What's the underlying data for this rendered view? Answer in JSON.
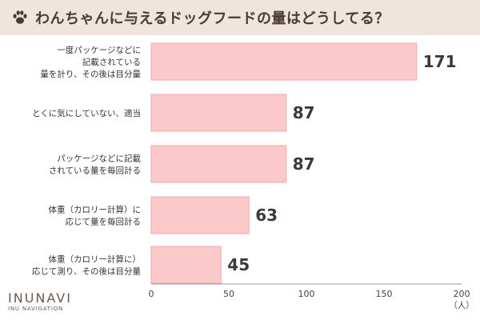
{
  "header": {
    "title": "わんちゃんに与えるドッグフードの量はどうしてる？",
    "icon": "paw-icon"
  },
  "colors": {
    "header_bg": "#efe5dc",
    "bar_fill": "#fbc9c9",
    "bar_stroke": "#f0aaaa",
    "axis": "#999999"
  },
  "logo": {
    "main": "INUNAVI",
    "sub": "INU NAVIGATION"
  },
  "chart_data": {
    "type": "bar",
    "orientation": "horizontal",
    "categories": [
      [
        "一度パッケージなどに",
        "記載されている",
        "量を計り、その後は目分量"
      ],
      [
        "とくに気にしていない、適当"
      ],
      [
        "パッケージなどに記載",
        "されている量を毎回計る"
      ],
      [
        "体重（カロリー計算）に",
        "応じて量を毎回計る"
      ],
      [
        "体重（カロリー計算に）",
        "応じて測り、その後は目分量"
      ]
    ],
    "values": [
      171,
      87,
      87,
      63,
      45
    ],
    "xlim": [
      0,
      200
    ],
    "xticks": [
      0,
      50,
      100,
      150,
      200
    ],
    "xlabel": "（人）",
    "grid": false,
    "data_labels": true
  }
}
